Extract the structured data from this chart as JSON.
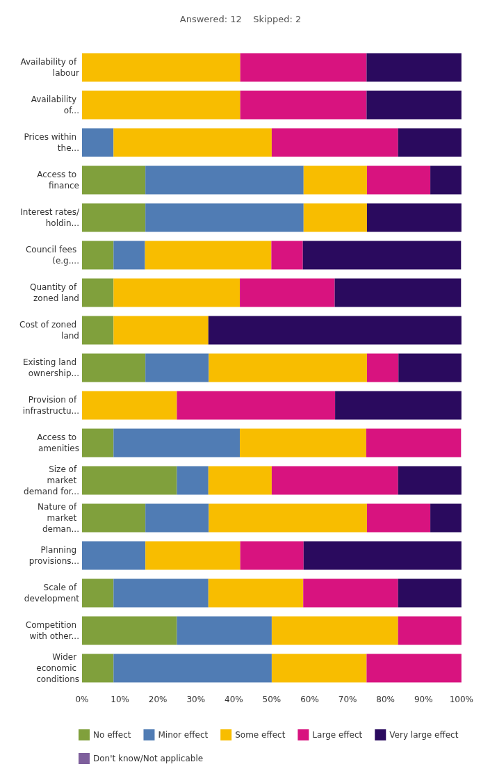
{
  "chart_data": {
    "type": "bar",
    "orientation": "horizontal",
    "stacked": true,
    "title": "Answered: 12    Skipped: 2",
    "categories": [
      "Availability of labour",
      "Availability of...",
      "Prices within the...",
      "Access to finance",
      "Interest rates/holdin...",
      "Council fees (e.g....",
      "Quantity of zoned land",
      "Cost of zoned land",
      "Existing land ownership...",
      "Provision of infrastructu...",
      "Access to amenities",
      "Size of market demand for...",
      "Nature of market deman...",
      "Planning provisions...",
      "Scale of development",
      "Competition with other...",
      "Wider economic conditions"
    ],
    "series": [
      {
        "name": "No effect",
        "color": "#80a03c",
        "values": [
          0,
          0,
          0,
          16.7,
          16.7,
          8.3,
          8.3,
          8.3,
          16.7,
          0,
          8.3,
          25,
          16.7,
          0,
          8.3,
          25,
          8.3
        ]
      },
      {
        "name": "Minor effect",
        "color": "#507cb4",
        "values": [
          0,
          0,
          8.3,
          41.7,
          41.7,
          8.3,
          0,
          0,
          16.7,
          0,
          33.3,
          8.3,
          16.7,
          16.7,
          25,
          25,
          41.7
        ]
      },
      {
        "name": "Some effect",
        "color": "#f8bd00",
        "values": [
          41.7,
          41.7,
          41.7,
          16.7,
          16.7,
          33.3,
          33.3,
          25,
          41.7,
          25,
          33.3,
          16.7,
          41.7,
          25,
          25,
          33.3,
          25
        ]
      },
      {
        "name": "Large effect",
        "color": "#d8137f",
        "values": [
          33.3,
          33.3,
          33.3,
          16.7,
          0,
          8.3,
          25,
          0,
          8.3,
          41.7,
          25,
          33.3,
          16.7,
          16.7,
          25,
          16.7,
          25
        ]
      },
      {
        "name": "Very large effect",
        "color": "#2a0a5e",
        "values": [
          25,
          25,
          16.7,
          8.3,
          25,
          41.7,
          33.3,
          66.7,
          16.7,
          33.3,
          0,
          16.7,
          8.3,
          41.7,
          16.7,
          0,
          0
        ]
      },
      {
        "name": "Don't know/Not applicable",
        "color": "#7e5f9c",
        "values": [
          0,
          0,
          0,
          0,
          0,
          0,
          0,
          0,
          0,
          0,
          0,
          0,
          0,
          0,
          0,
          0,
          0
        ]
      }
    ],
    "xlim": [
      0,
      100
    ],
    "xticks": [
      {
        "value": 0,
        "label": "0%"
      },
      {
        "value": 10,
        "label": "10%"
      },
      {
        "value": 20,
        "label": "20%"
      },
      {
        "value": 30,
        "label": "30%"
      },
      {
        "value": 40,
        "label": "40%"
      },
      {
        "value": 50,
        "label": "50%"
      },
      {
        "value": 60,
        "label": "60%"
      },
      {
        "value": 70,
        "label": "70%"
      },
      {
        "value": 80,
        "label": "80%"
      },
      {
        "value": 90,
        "label": "90%"
      },
      {
        "value": 100,
        "label": "100%"
      }
    ],
    "grid": false,
    "legend": "bottom"
  }
}
